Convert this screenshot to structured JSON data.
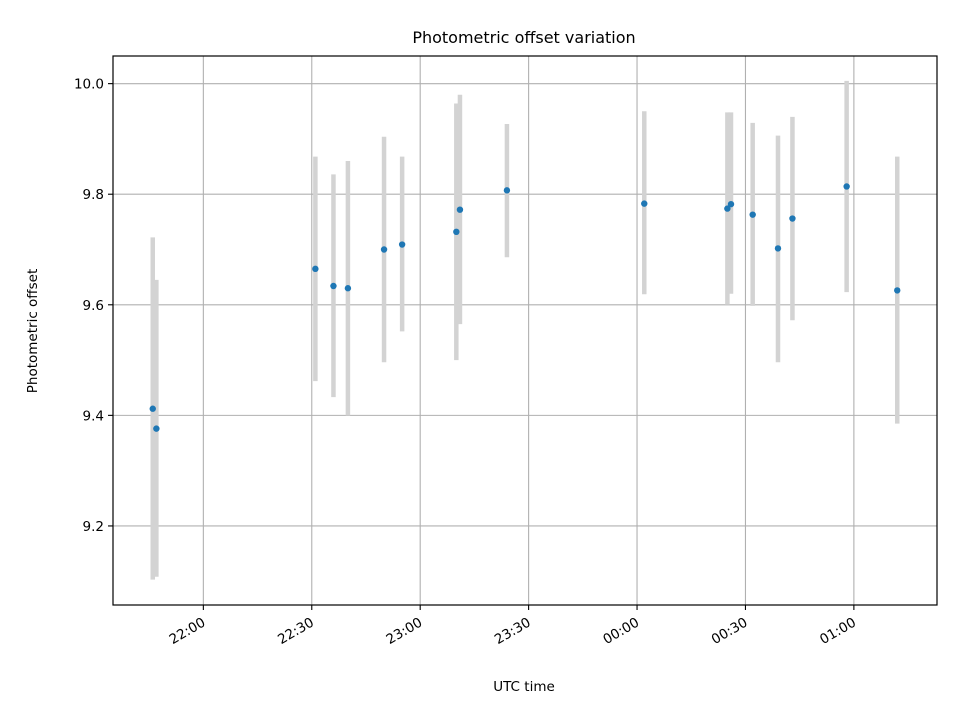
{
  "chart_data": {
    "type": "scatter",
    "title": "Photometric offset variation",
    "xlabel": "UTC time",
    "ylabel": "Photometric offset",
    "x_ticks": [
      "22:00",
      "22:30",
      "23:00",
      "23:30",
      "00:00",
      "00:30",
      "01:00"
    ],
    "y_ticks": [
      "9.2",
      "9.4",
      "9.6",
      "9.8",
      "10.0"
    ],
    "x_tick_times": [
      "22:00",
      "22:30",
      "23:00",
      "23:30",
      "00:00",
      "00:30",
      "01:00"
    ],
    "y_tick_values": [
      9.2,
      9.4,
      9.6,
      9.8,
      10.0
    ],
    "xlim": [
      "21:35",
      "01:23"
    ],
    "ylim": [
      9.057,
      10.05
    ],
    "grid": true,
    "colors": {
      "point": "#1f77b4",
      "errorbar": "#d3d3d3",
      "grid": "#b0b0b0"
    },
    "points": [
      {
        "x": "21:46",
        "y": 9.412,
        "ymin": 9.103,
        "ymax": 9.722
      },
      {
        "x": "21:47",
        "y": 9.376,
        "ymin": 9.108,
        "ymax": 9.645
      },
      {
        "x": "22:31",
        "y": 9.665,
        "ymin": 9.462,
        "ymax": 9.868
      },
      {
        "x": "22:36",
        "y": 9.634,
        "ymin": 9.433,
        "ymax": 9.836
      },
      {
        "x": "22:40",
        "y": 9.63,
        "ymin": 9.4,
        "ymax": 9.86
      },
      {
        "x": "22:50",
        "y": 9.7,
        "ymin": 9.496,
        "ymax": 9.904
      },
      {
        "x": "22:55",
        "y": 9.709,
        "ymin": 9.552,
        "ymax": 9.868
      },
      {
        "x": "23:10",
        "y": 9.732,
        "ymin": 9.5,
        "ymax": 9.964
      },
      {
        "x": "23:11",
        "y": 9.772,
        "ymin": 9.565,
        "ymax": 9.98
      },
      {
        "x": "23:24",
        "y": 9.807,
        "ymin": 9.686,
        "ymax": 9.927
      },
      {
        "x": "00:02",
        "y": 9.783,
        "ymin": 9.619,
        "ymax": 9.95
      },
      {
        "x": "00:25",
        "y": 9.774,
        "ymin": 9.6,
        "ymax": 9.948
      },
      {
        "x": "00:26",
        "y": 9.782,
        "ymin": 9.62,
        "ymax": 9.948
      },
      {
        "x": "00:32",
        "y": 9.763,
        "ymin": 9.598,
        "ymax": 9.929
      },
      {
        "x": "00:39",
        "y": 9.702,
        "ymin": 9.496,
        "ymax": 9.906
      },
      {
        "x": "00:43",
        "y": 9.756,
        "ymin": 9.572,
        "ymax": 9.94
      },
      {
        "x": "00:58",
        "y": 9.814,
        "ymin": 9.623,
        "ymax": 10.005
      },
      {
        "x": "01:12",
        "y": 9.626,
        "ymin": 9.385,
        "ymax": 9.868
      }
    ]
  }
}
